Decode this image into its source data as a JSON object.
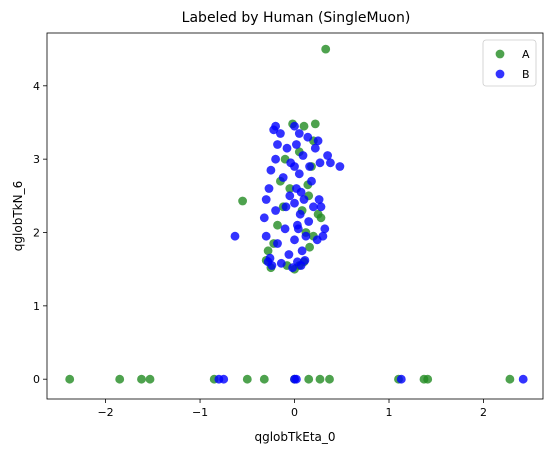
{
  "chart_data": {
    "type": "scatter",
    "title": "Labeled by Human (SingleMuon)",
    "xlabel": "qglobTkEta_0",
    "ylabel": "qglobTkN_6",
    "xlim": [
      -2.62,
      2.63
    ],
    "ylim": [
      -0.27,
      4.72
    ],
    "x_ticks": [
      -2,
      -1,
      0,
      1,
      2
    ],
    "y_ticks": [
      0,
      1,
      2,
      3,
      4
    ],
    "grid": false,
    "legend_position": "top-right",
    "series": [
      {
        "name": "A",
        "color": "#228B22",
        "points": [
          [
            -2.38,
            0
          ],
          [
            -1.85,
            0
          ],
          [
            -1.62,
            0
          ],
          [
            -1.53,
            0
          ],
          [
            -0.85,
            0
          ],
          [
            -0.5,
            0
          ],
          [
            -0.32,
            0
          ],
          [
            0.0,
            0
          ],
          [
            0.15,
            0
          ],
          [
            0.27,
            0
          ],
          [
            0.37,
            0
          ],
          [
            1.1,
            0
          ],
          [
            1.37,
            0
          ],
          [
            1.41,
            0
          ],
          [
            2.28,
            0
          ],
          [
            0.33,
            4.5
          ],
          [
            -0.55,
            2.43
          ],
          [
            -0.3,
            1.62
          ],
          [
            -0.25,
            1.52
          ],
          [
            -0.22,
            1.85
          ],
          [
            -0.18,
            2.1
          ],
          [
            -0.12,
            2.35
          ],
          [
            -0.08,
            1.55
          ],
          [
            -0.05,
            2.6
          ],
          [
            0.0,
            1.5
          ],
          [
            0.05,
            1.55
          ],
          [
            0.1,
            1.6
          ],
          [
            0.12,
            2.0
          ],
          [
            0.15,
            2.5
          ],
          [
            0.18,
            2.9
          ],
          [
            0.2,
            3.25
          ],
          [
            0.22,
            3.48
          ],
          [
            0.25,
            2.25
          ],
          [
            0.2,
            1.95
          ],
          [
            0.28,
            2.2
          ],
          [
            -0.28,
            1.75
          ],
          [
            0.16,
            1.8
          ],
          [
            0.1,
            3.45
          ],
          [
            -0.02,
            3.48
          ],
          [
            0.05,
            3.1
          ],
          [
            0.14,
            2.65
          ],
          [
            0.08,
            2.3
          ],
          [
            -0.15,
            2.7
          ],
          [
            -0.1,
            3.0
          ]
        ]
      },
      {
        "name": "B",
        "color": "#0000FF",
        "points": [
          [
            -0.8,
            0
          ],
          [
            -0.75,
            0
          ],
          [
            0.0,
            0
          ],
          [
            0.02,
            0
          ],
          [
            1.13,
            0
          ],
          [
            2.42,
            0
          ],
          [
            -0.63,
            1.95
          ],
          [
            0.48,
            2.9
          ],
          [
            0.35,
            3.05
          ],
          [
            0.38,
            2.95
          ],
          [
            0.25,
            3.25
          ],
          [
            0.27,
            2.95
          ],
          [
            0.32,
            2.05
          ],
          [
            0.3,
            1.95
          ],
          [
            0.26,
            2.45
          ],
          [
            0.28,
            2.35
          ],
          [
            -0.22,
            3.4
          ],
          [
            -0.2,
            3.45
          ],
          [
            -0.18,
            3.2
          ],
          [
            -0.25,
            2.85
          ],
          [
            -0.27,
            2.6
          ],
          [
            -0.3,
            2.45
          ],
          [
            -0.32,
            2.2
          ],
          [
            -0.3,
            1.95
          ],
          [
            -0.28,
            1.6
          ],
          [
            -0.24,
            1.55
          ],
          [
            -0.2,
            3.0
          ],
          [
            -0.2,
            2.3
          ],
          [
            -0.18,
            1.85
          ],
          [
            -0.15,
            3.35
          ],
          [
            -0.12,
            2.75
          ],
          [
            -0.1,
            2.05
          ],
          [
            -0.08,
            3.15
          ],
          [
            -0.06,
            1.7
          ],
          [
            -0.05,
            2.5
          ],
          [
            0.0,
            3.45
          ],
          [
            0.0,
            2.9
          ],
          [
            0.0,
            2.4
          ],
          [
            0.0,
            1.9
          ],
          [
            0.02,
            3.2
          ],
          [
            0.02,
            2.6
          ],
          [
            0.03,
            2.1
          ],
          [
            0.03,
            1.6
          ],
          [
            0.05,
            3.35
          ],
          [
            0.05,
            2.8
          ],
          [
            0.06,
            2.25
          ],
          [
            0.08,
            1.75
          ],
          [
            0.09,
            3.05
          ],
          [
            0.1,
            2.45
          ],
          [
            0.12,
            1.95
          ],
          [
            0.14,
            3.3
          ],
          [
            0.15,
            2.15
          ],
          [
            0.18,
            2.7
          ],
          [
            0.2,
            2.35
          ],
          [
            0.22,
            3.15
          ],
          [
            0.24,
            1.9
          ],
          [
            -0.02,
            1.52
          ],
          [
            0.07,
            1.55
          ],
          [
            0.11,
            1.62
          ],
          [
            -0.14,
            1.58
          ],
          [
            -0.26,
            1.65
          ],
          [
            -0.04,
            2.95
          ],
          [
            0.04,
            2.05
          ],
          [
            0.07,
            2.55
          ],
          [
            -0.09,
            2.35
          ],
          [
            0.16,
            2.9
          ]
        ]
      }
    ]
  }
}
